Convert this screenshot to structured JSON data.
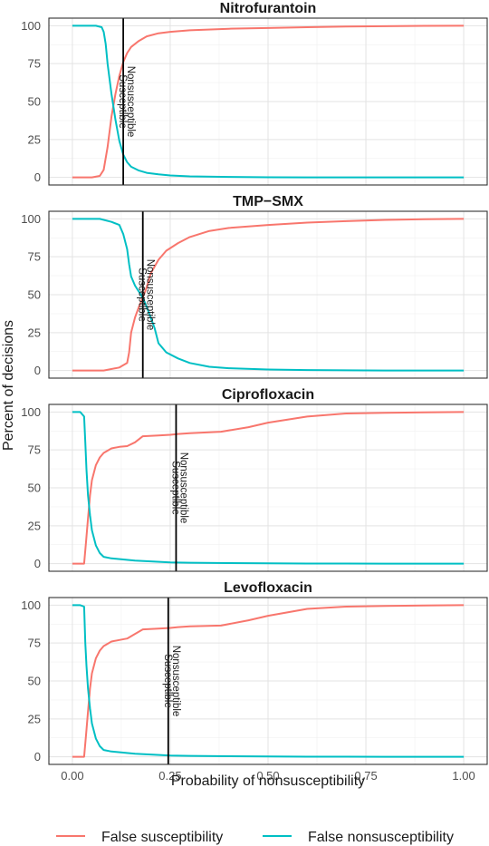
{
  "chart_data": {
    "type": "line",
    "xlabel": "Probability of nonsusceptibility",
    "ylabel": "Percent of decisions",
    "xlim": [
      -0.06,
      1.06
    ],
    "ylim": [
      -5,
      105
    ],
    "x_ticks": [
      0,
      0.25,
      0.5,
      0.75,
      1
    ],
    "x_tick_labels": [
      "0.00",
      "0.25",
      "0.50",
      "0.75",
      "1.00"
    ],
    "y_ticks": [
      0,
      25,
      50,
      75,
      100
    ],
    "y_tick_labels": [
      "0",
      "25",
      "50",
      "75",
      "100"
    ],
    "grid": true,
    "legend_position": "bottom",
    "series_info": [
      {
        "name": "False susceptibility",
        "color": "#F8766D"
      },
      {
        "name": "False nonsusceptibility",
        "color": "#00BFC4"
      }
    ],
    "panels": [
      {
        "title": "Nitrofurantoin",
        "threshold": 0.13,
        "label_left": "Susceptible",
        "label_right": "Nonsusceptible",
        "series": [
          {
            "name": "False susceptibility",
            "x": [
              0,
              0.05,
              0.07,
              0.08,
              0.09,
              0.1,
              0.11,
              0.12,
              0.13,
              0.14,
              0.15,
              0.17,
              0.19,
              0.22,
              0.25,
              0.3,
              0.4,
              0.5,
              0.6,
              0.7,
              0.8,
              0.9,
              1.0
            ],
            "y": [
              0,
              0,
              1,
              5,
              20,
              40,
              55,
              67,
              76,
              82,
              86,
              90,
              93,
              95,
              96,
              97,
              98,
              98.5,
              99,
              99.5,
              99.7,
              99.9,
              100
            ]
          },
          {
            "name": "False nonsusceptibility",
            "x": [
              0,
              0.06,
              0.075,
              0.08,
              0.085,
              0.09,
              0.1,
              0.11,
              0.12,
              0.13,
              0.14,
              0.15,
              0.17,
              0.19,
              0.22,
              0.25,
              0.3,
              0.4,
              0.5,
              0.6,
              0.8,
              1.0
            ],
            "y": [
              100,
              100,
              99,
              96,
              88,
              75,
              55,
              38,
              24,
              15,
              10,
              7,
              4.5,
              3,
              2,
              1.3,
              0.7,
              0.3,
              0.1,
              0,
              0,
              0
            ]
          }
        ]
      },
      {
        "title": "TMP−SMX",
        "threshold": 0.18,
        "label_left": "Susceptible",
        "label_right": "Nonsusceptible",
        "series": [
          {
            "name": "False susceptibility",
            "x": [
              0,
              0.08,
              0.12,
              0.14,
              0.145,
              0.15,
              0.16,
              0.17,
              0.18,
              0.19,
              0.2,
              0.22,
              0.24,
              0.27,
              0.3,
              0.35,
              0.4,
              0.5,
              0.6,
              0.7,
              0.8,
              0.9,
              1.0
            ],
            "y": [
              0,
              0,
              2,
              5,
              12,
              25,
              35,
              42,
              48,
              55,
              64,
              73,
              79,
              84,
              88,
              92,
              94,
              96,
              97.5,
              98.5,
              99.3,
              99.8,
              100
            ]
          },
          {
            "name": "False nonsusceptibility",
            "x": [
              0,
              0.07,
              0.1,
              0.12,
              0.13,
              0.14,
              0.145,
              0.15,
              0.16,
              0.17,
              0.18,
              0.19,
              0.2,
              0.21,
              0.22,
              0.24,
              0.27,
              0.3,
              0.35,
              0.4,
              0.5,
              0.6,
              0.8,
              1.0
            ],
            "y": [
              100,
              100,
              98,
              96,
              90,
              80,
              70,
              62,
              56,
              52,
              48,
              42,
              35,
              28,
              18,
              12,
              8,
              5,
              2.5,
              1.5,
              0.7,
              0.3,
              0,
              0
            ]
          }
        ]
      },
      {
        "title": "Ciprofloxacin",
        "threshold": 0.265,
        "label_left": "Susceptible",
        "label_right": "Nonsusceptible",
        "series": [
          {
            "name": "False susceptibility",
            "x": [
              0,
              0.03,
              0.035,
              0.04,
              0.045,
              0.05,
              0.06,
              0.07,
              0.08,
              0.1,
              0.12,
              0.14,
              0.16,
              0.18,
              0.22,
              0.25,
              0.27,
              0.3,
              0.38,
              0.45,
              0.5,
              0.6,
              0.7,
              0.8,
              0.9,
              1.0
            ],
            "y": [
              0,
              0,
              15,
              30,
              45,
              55,
              65,
              70,
              73,
              76,
              77,
              77.5,
              80,
              84,
              84.5,
              85,
              85.5,
              86,
              87,
              90,
              93,
              97,
              99,
              99.5,
              99.8,
              100
            ]
          },
          {
            "name": "False nonsusceptibility",
            "x": [
              0,
              0.02,
              0.03,
              0.033,
              0.036,
              0.04,
              0.045,
              0.05,
              0.06,
              0.07,
              0.08,
              0.1,
              0.13,
              0.16,
              0.2,
              0.25,
              0.3,
              0.4,
              0.5,
              0.6,
              0.8,
              1.0
            ],
            "y": [
              100,
              100,
              97,
              80,
              62,
              45,
              32,
              22,
              12,
              7,
              4.5,
              3.5,
              2.8,
              2,
              1.5,
              0.8,
              0.6,
              0.4,
              0.2,
              0.1,
              0,
              0
            ]
          }
        ]
      },
      {
        "title": "Levofloxacin",
        "threshold": 0.245,
        "label_left": "Susceptible",
        "label_right": "Nonsusceptible",
        "series": [
          {
            "name": "False susceptibility",
            "x": [
              0,
              0.03,
              0.035,
              0.04,
              0.045,
              0.05,
              0.06,
              0.07,
              0.08,
              0.1,
              0.12,
              0.14,
              0.16,
              0.18,
              0.22,
              0.25,
              0.27,
              0.3,
              0.38,
              0.45,
              0.5,
              0.6,
              0.7,
              0.8,
              0.9,
              1.0
            ],
            "y": [
              0,
              0,
              15,
              30,
              45,
              55,
              65,
              70,
              73,
              76,
              77,
              78,
              81,
              84,
              84.5,
              85,
              85.5,
              86,
              86.5,
              90,
              93,
              97.5,
              99,
              99.5,
              99.8,
              100
            ]
          },
          {
            "name": "False nonsusceptibility",
            "x": [
              0,
              0.02,
              0.03,
              0.033,
              0.036,
              0.04,
              0.045,
              0.05,
              0.06,
              0.07,
              0.08,
              0.1,
              0.13,
              0.16,
              0.2,
              0.25,
              0.3,
              0.4,
              0.5,
              0.6,
              0.8,
              1.0
            ],
            "y": [
              100,
              100,
              99,
              75,
              60,
              45,
              32,
              22,
              12,
              7,
              4.5,
              3.5,
              2.8,
              2,
              1.5,
              0.8,
              0.6,
              0.4,
              0.2,
              0.1,
              0,
              0
            ]
          }
        ]
      }
    ]
  }
}
